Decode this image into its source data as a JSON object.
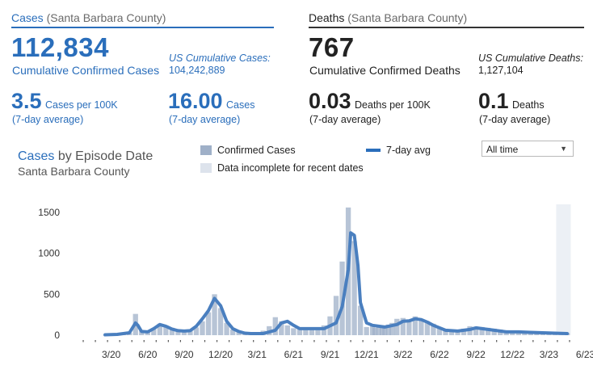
{
  "cases_panel": {
    "header_main": "Cases",
    "header_sub": "(Santa Barbara County)",
    "total": "112,834",
    "total_label": "Cumulative Confirmed Cases",
    "us_label": "US Cumulative Cases:",
    "us_value": "104,242,889",
    "rate_value": "3.5",
    "rate_unit": "Cases per 100K",
    "rate_avg": "(7-day average)",
    "count_value": "16.00",
    "count_unit": "Cases",
    "count_avg": "(7-day average)"
  },
  "deaths_panel": {
    "header_main": "Deaths",
    "header_sub": "(Santa Barbara County)",
    "total": "767",
    "total_label": "Cumulative Confirmed Deaths",
    "us_label": "US Cumulative Deaths:",
    "us_value": "1,127,104",
    "rate_value": "0.03",
    "rate_unit": "Deaths per 100K",
    "rate_avg": "(7-day average)",
    "count_value": "0.1",
    "count_unit": "Deaths",
    "count_avg": "(7-day average)"
  },
  "chart_header": {
    "title_main": "Cases",
    "title_rest": "by Episode Date",
    "subtitle": "Santa Barbara County",
    "legend_confirmed": "Confirmed Cases",
    "legend_incomplete": "Data incomplete for recent dates",
    "legend_avg": "7-day avg",
    "range_select": "All time"
  },
  "colors": {
    "accent": "#2a6ebb",
    "line": "#4a7fbf",
    "bars": "#9fb0c8",
    "incomplete": "#dde3ec"
  },
  "chart_data": {
    "type": "area",
    "title": "Cases by Episode Date",
    "subtitle": "Santa Barbara County",
    "xlabel": "",
    "ylabel": "",
    "ylim": [
      0,
      1600
    ],
    "yticks": [
      0,
      500,
      1000,
      1500
    ],
    "xlim": [
      0,
      40.4
    ],
    "x_tick_labels": [
      "3/20",
      "6/20",
      "9/20",
      "12/20",
      "3/21",
      "6/21",
      "9/21",
      "12/21",
      "3/22",
      "6/22",
      "9/22",
      "12/22",
      "3/23",
      "6/23"
    ],
    "x_unit": "months since 2020-01",
    "series": [
      {
        "name": "Confirmed Cases",
        "style": "bars",
        "x": [
          2,
          3.5,
          4,
          4.5,
          5,
          5.5,
          6,
          6.5,
          7,
          7.5,
          8,
          8.5,
          9,
          9.5,
          10,
          10.5,
          11,
          11.5,
          12,
          12.5,
          13,
          13.5,
          14,
          14.5,
          15,
          15.5,
          16,
          16.5,
          17,
          17.5,
          18,
          18.5,
          19,
          19.5,
          20,
          20.5,
          21,
          21.5,
          22,
          22.5,
          23,
          23.5,
          24,
          24.2,
          24.5,
          24.8,
          25,
          25.3,
          25.6,
          26,
          26.5,
          27,
          27.5,
          28,
          28.5,
          29,
          29.5,
          30,
          30.5,
          31,
          31.5,
          32,
          32.5,
          33,
          33.5,
          34,
          34.5,
          35,
          35.5,
          36,
          36.5,
          37,
          37.5,
          38,
          38.5,
          39,
          39.5,
          40
        ],
        "values": [
          3,
          12,
          30,
          260,
          55,
          45,
          75,
          140,
          120,
          90,
          60,
          50,
          55,
          95,
          170,
          280,
          500,
          330,
          150,
          70,
          45,
          30,
          30,
          35,
          55,
          110,
          220,
          170,
          120,
          85,
          80,
          85,
          75,
          85,
          120,
          230,
          480,
          900,
          1560,
          1150,
          360,
          100,
          130,
          90,
          100,
          110,
          120,
          130,
          150,
          200,
          210,
          180,
          230,
          200,
          170,
          140,
          95,
          70,
          60,
          65,
          80,
          110,
          105,
          100,
          90,
          80,
          70,
          60,
          50,
          50,
          45,
          40,
          38,
          38,
          35,
          30,
          30,
          28
        ]
      },
      {
        "name": "7-day avg",
        "style": "line",
        "x": [
          2,
          3,
          4,
          4.5,
          4.7,
          5,
          5.5,
          6,
          6.5,
          7,
          7.5,
          8,
          8.5,
          9,
          9.5,
          10,
          10.5,
          11,
          11.5,
          12,
          12.5,
          13,
          13.5,
          14,
          15,
          16,
          16.5,
          17,
          17.5,
          18,
          19,
          20,
          21,
          21.5,
          22,
          22.2,
          22.5,
          22.8,
          23,
          23.5,
          24,
          25,
          26,
          26.5,
          27,
          27.5,
          28,
          28.5,
          29,
          30,
          31,
          32,
          32.5,
          33,
          34,
          35,
          36,
          37,
          38,
          39,
          40
        ],
        "values": [
          5,
          10,
          30,
          150,
          120,
          45,
          40,
          80,
          130,
          110,
          75,
          55,
          50,
          55,
          110,
          200,
          300,
          450,
          360,
          170,
          80,
          45,
          25,
          20,
          20,
          60,
          150,
          170,
          120,
          80,
          80,
          80,
          150,
          350,
          800,
          1250,
          1220,
          850,
          400,
          150,
          120,
          100,
          130,
          170,
          175,
          200,
          190,
          160,
          120,
          60,
          50,
          70,
          90,
          80,
          60,
          40,
          40,
          35,
          30,
          25,
          20
        ]
      }
    ],
    "annotations": [
      "Data incomplete for recent dates"
    ]
  }
}
